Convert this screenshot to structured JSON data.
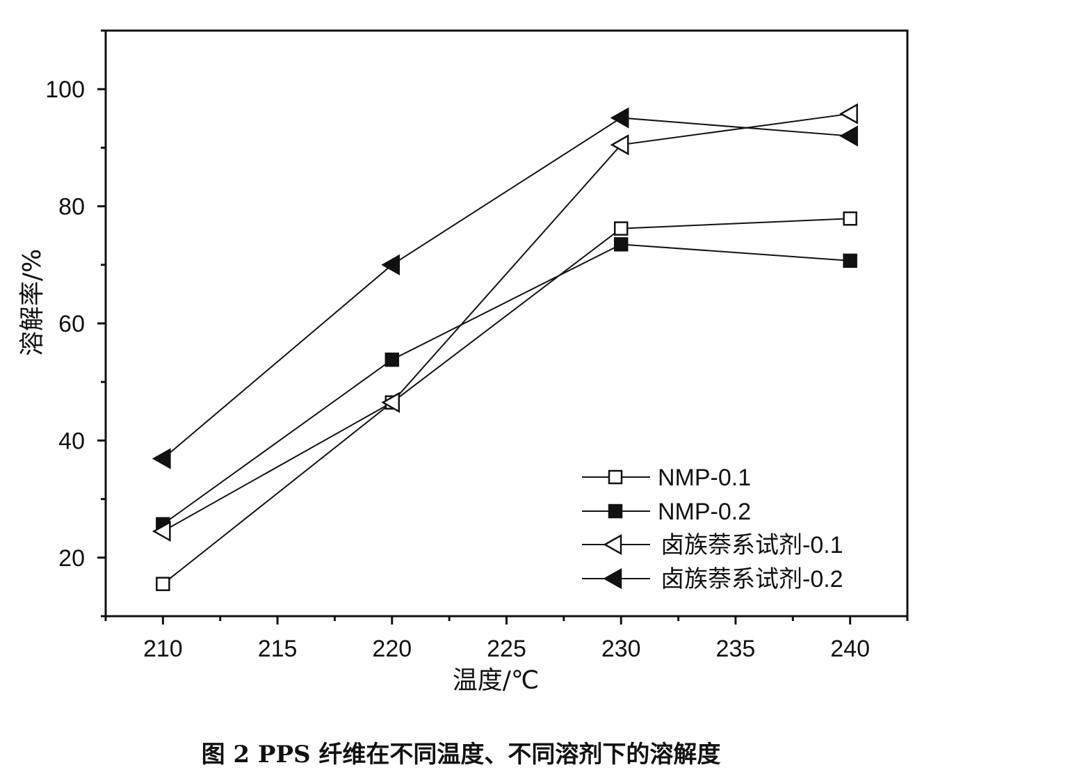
{
  "chart_data": {
    "type": "line",
    "title": "",
    "caption": "图 2 PPS 纤维在不同温度、不同溶剂下的溶解度",
    "xlabel": "温度/℃",
    "ylabel": "溶解率/%",
    "xlim": [
      207.5,
      242.5
    ],
    "ylim": [
      10,
      110
    ],
    "xticks": [
      210,
      215,
      220,
      225,
      230,
      235,
      240
    ],
    "yticks": [
      20,
      40,
      60,
      80,
      100
    ],
    "grid": false,
    "legend_position": "bottom-right",
    "x": [
      210,
      220,
      230,
      240
    ],
    "series": [
      {
        "name": "NMP-0.1",
        "marker": "open-square",
        "values": [
          15.5,
          46.5,
          76.2,
          77.9
        ]
      },
      {
        "name": "NMP-0.2",
        "marker": "filled-square",
        "values": [
          25.7,
          53.8,
          73.5,
          70.7
        ]
      },
      {
        "name": "卤族萘系试剂-0.1",
        "marker": "open-left-triangle",
        "values": [
          24.5,
          46.5,
          90.5,
          95.8
        ]
      },
      {
        "name": "卤族萘系试剂-0.2",
        "marker": "filled-left-triangle",
        "values": [
          36.9,
          70.0,
          95.1,
          92.0
        ]
      }
    ]
  }
}
